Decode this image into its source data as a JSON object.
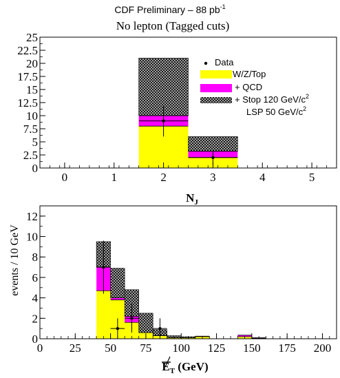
{
  "header": {
    "title_main": "CDF Preliminary – 88 pb",
    "title_sup": "-1",
    "subtitle": "No lepton (Tagged cuts)"
  },
  "colors": {
    "yellow": "#ffff00",
    "magenta": "#ff00ff",
    "hatch_fg": "#000000",
    "hatch_bg": "#c8c8c8"
  },
  "legend": {
    "data": "Data",
    "wzt": "W/Z/Top",
    "qcd": "+ QCD",
    "stop_main": "+ Stop 120 GeV/c",
    "stop_sup": "2",
    "lsp_main": "LSP   50 GeV/c",
    "lsp_sup": "2"
  },
  "chart_data": [
    {
      "type": "bar",
      "title": "No lepton (Tagged cuts)",
      "xlabel": "N",
      "xlabel_sub": "J",
      "ylabel": "",
      "xlim": [
        -0.5,
        5.5
      ],
      "ylim": [
        0,
        25
      ],
      "xticks": [
        0,
        1,
        2,
        3,
        4,
        5
      ],
      "yticks": [
        0,
        2.5,
        5,
        7.5,
        10,
        12.5,
        15,
        17.5,
        20,
        22.5,
        25
      ],
      "ytick_labels": [
        "0",
        "2.5",
        "5",
        "7.5",
        "10",
        "12.5",
        "15",
        "17.5",
        "20",
        "22.5",
        "25"
      ],
      "stacked": true,
      "bins": [
        [
          1.5,
          2.5
        ],
        [
          2.5,
          3.5
        ]
      ],
      "series": [
        {
          "name": "W/Z/Top",
          "values": [
            8,
            2
          ]
        },
        {
          "name": "+ QCD",
          "values": [
            2,
            1.2
          ]
        },
        {
          "name": "+ Stop 120 GeV/c2 LSP 50 GeV/c2",
          "values": [
            11,
            2.8
          ]
        }
      ],
      "data_points": [
        {
          "x": 2,
          "y": 9,
          "yerr": 3
        },
        {
          "x": 3,
          "y": 2,
          "yerr": 1.4
        }
      ],
      "legend_position": "top-right"
    },
    {
      "type": "bar",
      "title": "",
      "xlabel": "E",
      "xlabel_sub": "T",
      "xlabel_unit": " (GeV)",
      "ylabel": "events / 10 GeV",
      "xlim": [
        0,
        210
      ],
      "ylim": [
        0,
        13
      ],
      "xticks": [
        0,
        25,
        50,
        75,
        100,
        125,
        150,
        175,
        200
      ],
      "yticks": [
        0,
        2,
        4,
        6,
        8,
        10,
        12
      ],
      "ytick_labels": [
        "0",
        "2",
        "4",
        "6",
        "8",
        "10",
        "12"
      ],
      "stacked": true,
      "bins": [
        [
          40,
          50
        ],
        [
          50,
          60
        ],
        [
          60,
          70
        ],
        [
          70,
          80
        ],
        [
          80,
          90
        ],
        [
          90,
          100
        ],
        [
          100,
          110
        ],
        [
          110,
          120
        ],
        [
          120,
          130
        ],
        [
          130,
          140
        ],
        [
          140,
          150
        ],
        [
          150,
          160
        ]
      ],
      "series": [
        {
          "name": "W/Z/Top",
          "values": [
            4.7,
            3.8,
            1.6,
            0.6,
            0.3,
            0.1,
            0.1,
            0.2,
            0,
            0,
            0.2,
            0.05
          ]
        },
        {
          "name": "+ QCD",
          "values": [
            2.3,
            0.2,
            0.6,
            0,
            0,
            0,
            0,
            0.05,
            0,
            0,
            0.15,
            0.05
          ]
        },
        {
          "name": "+ Stop",
          "values": [
            2.5,
            2.9,
            2.6,
            1.9,
            0.6,
            0.2,
            0.1,
            0,
            0,
            0,
            0,
            0
          ]
        }
      ],
      "data_points": [
        {
          "x": 45,
          "y": 7,
          "yerr": 2.6
        },
        {
          "x": 55,
          "y": 1,
          "yerr": 1
        },
        {
          "x": 65,
          "y": 2,
          "yerr": 1.4
        },
        {
          "x": 85,
          "y": 1,
          "yerr": 1
        }
      ]
    }
  ]
}
